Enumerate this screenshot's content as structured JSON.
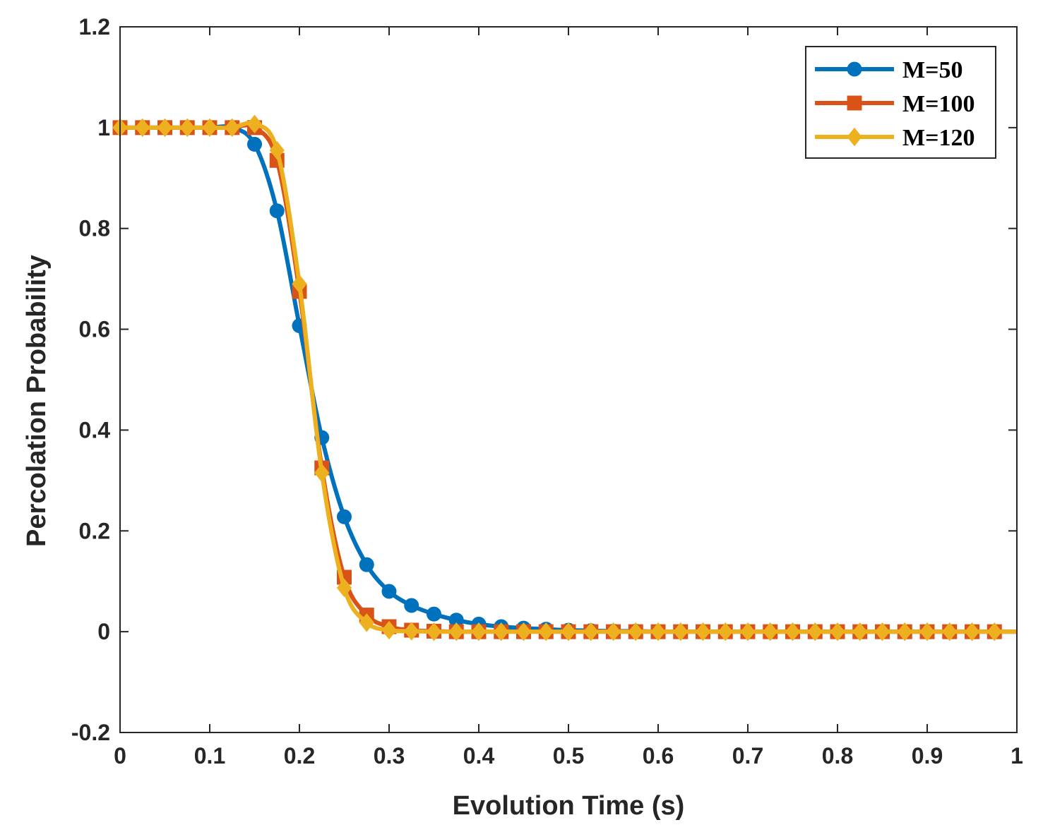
{
  "chart_data": {
    "type": "line",
    "title": "",
    "xlabel": "Evolution Time (s)",
    "ylabel": "Percolation Probability",
    "xlim": [
      0,
      1
    ],
    "ylim": [
      -0.2,
      1.2
    ],
    "xticks": [
      0,
      0.1,
      0.2,
      0.3,
      0.4,
      0.5,
      0.6,
      0.7,
      0.8,
      0.9,
      1
    ],
    "xtick_labels": [
      "0",
      "0.1",
      "0.2",
      "0.3",
      "0.4",
      "0.5",
      "0.6",
      "0.7",
      "0.8",
      "0.9",
      "1"
    ],
    "yticks": [
      -0.2,
      0,
      0.2,
      0.4,
      0.6,
      0.8,
      1,
      1.2
    ],
    "ytick_labels": [
      "-0.2",
      "0",
      "0.2",
      "0.4",
      "0.6",
      "0.8",
      "1",
      "1.2"
    ],
    "grid": false,
    "legend_position": "top-right",
    "x": [
      0,
      0.025,
      0.05,
      0.075,
      0.1,
      0.125,
      0.15,
      0.175,
      0.2,
      0.225,
      0.25,
      0.275,
      0.3,
      0.325,
      0.35,
      0.375,
      0.4,
      0.425,
      0.45,
      0.475,
      0.5,
      0.525,
      0.55,
      0.575,
      0.6,
      0.625,
      0.65,
      0.675,
      0.7,
      0.725,
      0.75,
      0.775,
      0.8,
      0.825,
      0.85,
      0.875,
      0.9,
      0.925,
      0.95,
      0.975
    ],
    "series": [
      {
        "name": "M=50",
        "color": "#0072BD",
        "marker": "circle",
        "values": [
          1,
          1,
          1,
          1,
          1,
          1,
          0.967,
          0.835,
          0.607,
          0.385,
          0.228,
          0.133,
          0.08,
          0.052,
          0.035,
          0.023,
          0.015,
          0.01,
          0.007,
          0.005,
          0.003,
          0.002,
          0.001,
          0.001,
          0,
          0,
          0,
          0,
          0,
          0,
          0,
          0,
          0,
          0,
          0,
          0,
          0,
          0,
          0,
          0
        ]
      },
      {
        "name": "M=100",
        "color": "#D95319",
        "marker": "square",
        "values": [
          1,
          1,
          1,
          1,
          1,
          1,
          1,
          0.935,
          0.675,
          0.325,
          0.108,
          0.033,
          0.01,
          0.003,
          0.001,
          0,
          0,
          0,
          0,
          0,
          0,
          0,
          0,
          0,
          0,
          0,
          0,
          0,
          0,
          0,
          0,
          0,
          0,
          0,
          0,
          0,
          0,
          0,
          0,
          0
        ]
      },
      {
        "name": "M=120",
        "color": "#EDB120",
        "marker": "diamond",
        "values": [
          1,
          1,
          1,
          1,
          1,
          1,
          1.007,
          0.955,
          0.69,
          0.315,
          0.087,
          0.018,
          0.003,
          0.001,
          0,
          0,
          0,
          0,
          0,
          0,
          0,
          0,
          0,
          0,
          0,
          0,
          0,
          0,
          0,
          0,
          0,
          0,
          0,
          0,
          0,
          0,
          0,
          0,
          0,
          0
        ]
      }
    ]
  }
}
